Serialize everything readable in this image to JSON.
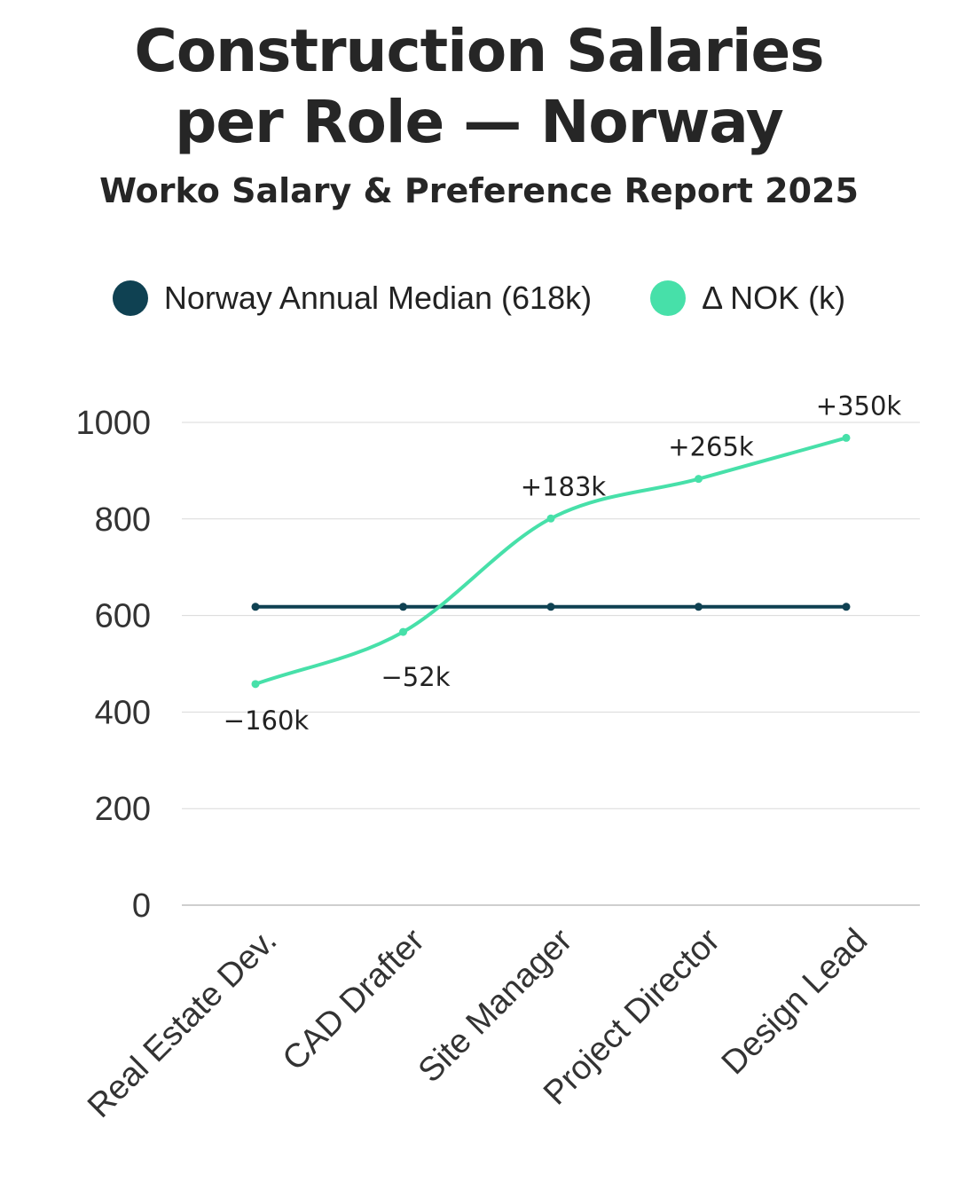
{
  "colors": {
    "median": "#0f4152",
    "delta": "#47e0a9",
    "grid": "#d9d9d9",
    "text": "#262626"
  },
  "chart_data": {
    "type": "line",
    "title": "Construction Salaries per Role — Norway",
    "subtitle": "Worko Salary & Preference Report 2025",
    "categories": [
      "Real Estate Dev.",
      "CAD Drafter",
      "Site Manager",
      "Project Director",
      "Design Lead"
    ],
    "series": [
      {
        "name": "Norway Annual Median (618k)",
        "values": [
          618,
          618,
          618,
          618,
          618
        ],
        "color": "#0f4152"
      },
      {
        "name": "Δ NOK (k)",
        "values": [
          458,
          566,
          801,
          883,
          968
        ],
        "color": "#47e0a9",
        "data_labels": [
          "−160k",
          "−52k",
          "+183k",
          "+265k",
          "+350k"
        ]
      }
    ],
    "ylim": [
      0,
      1000
    ],
    "yticks": [
      0,
      200,
      400,
      600,
      800,
      1000
    ],
    "grid": true,
    "legend_position": "top"
  }
}
